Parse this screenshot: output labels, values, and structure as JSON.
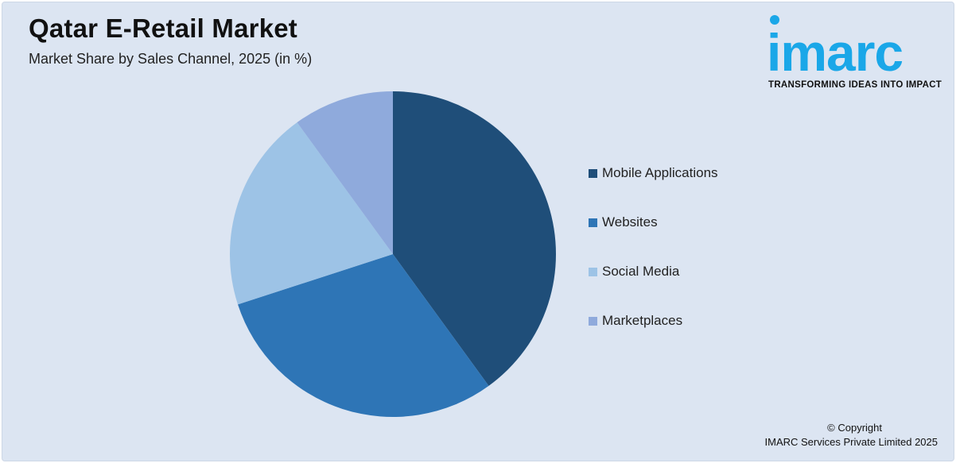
{
  "header": {
    "title": "Qatar E-Retail Market",
    "subtitle": "Market Share by Sales Channel, 2025 (in %)"
  },
  "logo": {
    "word": "imarc",
    "tagline": "TRANSFORMING IDEAS INTO IMPACT",
    "color": "#1aa7e8"
  },
  "chart_data": {
    "type": "pie",
    "title": "Qatar E-Retail Market",
    "subtitle": "Market Share by Sales Channel, 2025 (in %)",
    "legend_position": "right",
    "slices": [
      {
        "label": "Mobile Applications",
        "value": 40,
        "color": "#1f4e79"
      },
      {
        "label": "Websites",
        "value": 30,
        "color": "#2e75b6"
      },
      {
        "label": "Social Media",
        "value": 20,
        "color": "#9dc3e6"
      },
      {
        "label": "Marketplaces",
        "value": 10,
        "color": "#8faadc"
      }
    ]
  },
  "footer": {
    "copyright_line1": "© Copyright",
    "copyright_line2": "IMARC Services Private Limited 2025"
  }
}
